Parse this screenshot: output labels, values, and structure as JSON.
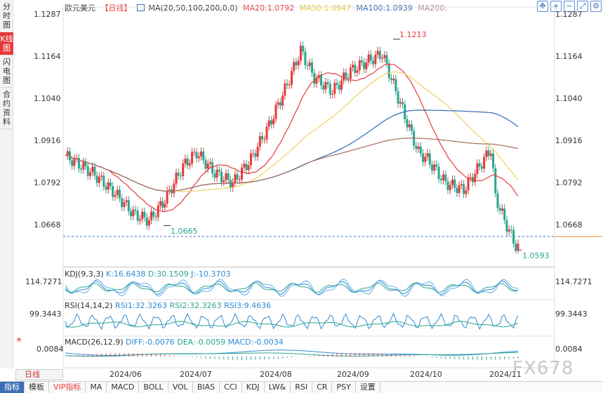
{
  "side_tabs": [
    "分时图",
    "K线图",
    "闪电图",
    "合约资料"
  ],
  "header": {
    "symbol": "欧元美元",
    "period": "【日线】",
    "ma_params": "MA(20,50,100,200,0,0)",
    "ma20": "MA20:1.0792",
    "ma50": "MA50:1.0947",
    "ma100": "MA100:1.0939",
    "ma200": "MA200:"
  },
  "tool_icons": [
    "move-icon",
    "zoom-in-icon",
    "zoom-out-icon",
    "fullscreen-icon",
    "settings-icon"
  ],
  "price_axis": [
    "1.1287",
    "1.1164",
    "1.1040",
    "1.0916",
    "1.0792",
    "1.0668"
  ],
  "annotations": {
    "high": "1.1213",
    "low": "1.0665",
    "last": "1.0593"
  },
  "kdj": {
    "label": "KDJ(9,3,3)",
    "k": "K:16.6438",
    "d": "D:30.1509",
    "j": "J:-10.3703",
    "axis": "114.7271"
  },
  "rsi": {
    "label": "RSI(14,14,2)",
    "rsi1": "RSI1:32.3263",
    "rsi2": "RSI2:32.3263",
    "rsi3": "RSI3:9.4636",
    "axis": "99.3443"
  },
  "macd": {
    "label": "MACD(26,12,9)",
    "diff": "DIFF:-0.0076",
    "dea": "DEA:-0.0059",
    "macd": "MACD:-0.0034",
    "axis": "0.0084"
  },
  "time_axis": [
    "2024/06",
    "2024/07",
    "2024/08",
    "2024/09",
    "2024/10",
    "2024/11"
  ],
  "period_button": "日线",
  "bottom_tabs": [
    "指标",
    "模板",
    "VIP指标",
    "MA",
    "MACD",
    "BOLL",
    "VOL",
    "BIAS",
    "CCI",
    "KDJ",
    "LW&",
    "RSI",
    "CR",
    "PSY",
    "设置"
  ],
  "watermark": "FX678",
  "colors": {
    "up": "#e8393a",
    "down": "#2aa58f",
    "ma20": "#e8393a",
    "ma50": "#f0d060",
    "ma100": "#2f6bb5",
    "ma200": "#a86b5a"
  }
}
